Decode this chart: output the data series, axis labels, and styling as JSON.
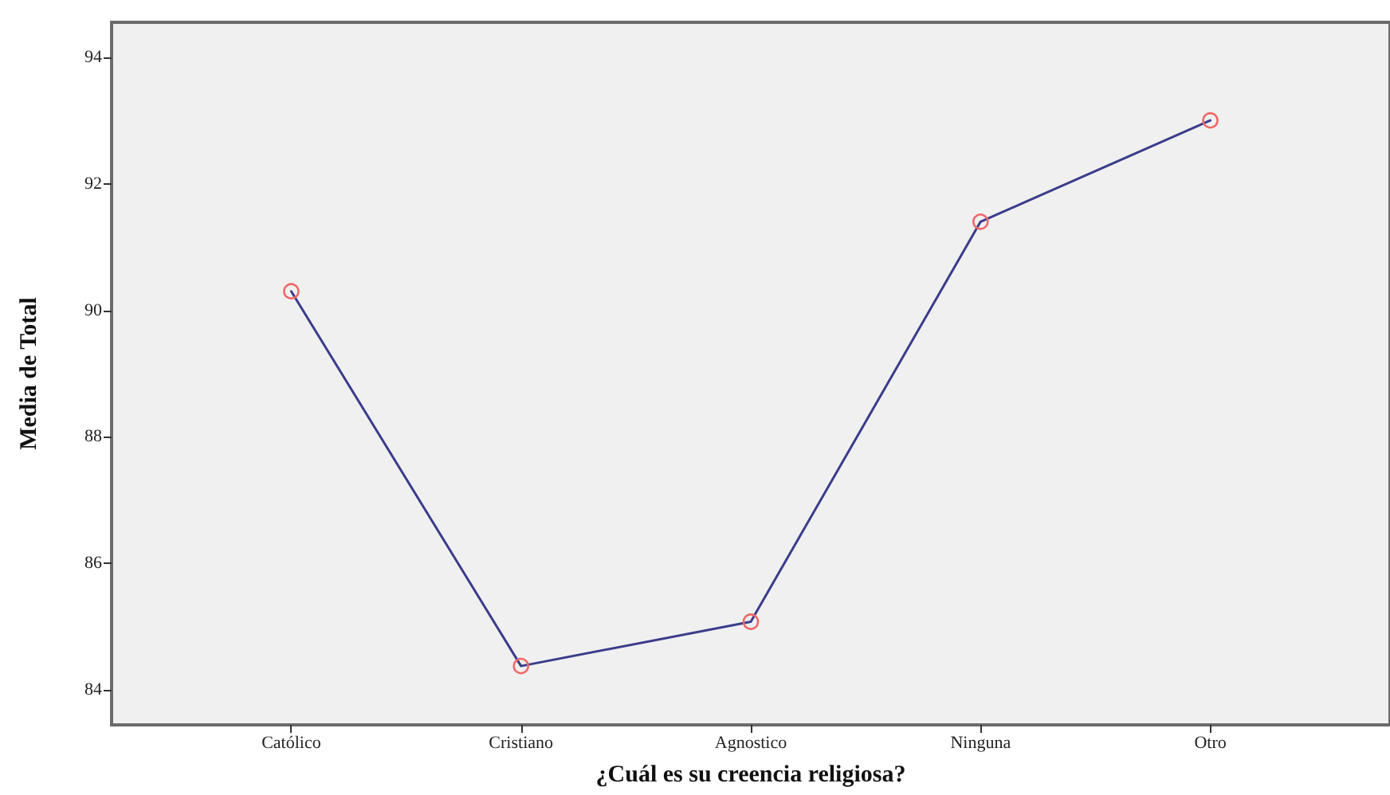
{
  "chart_data": {
    "type": "line",
    "xlabel": "¿Cuál es su creencia religiosa?",
    "ylabel": "Media de Total",
    "categories": [
      "Católico",
      "Cristiano",
      "Agnostico",
      "Ninguna",
      "Otro"
    ],
    "values": [
      90.3,
      84.38,
      85.08,
      91.4,
      93.0
    ],
    "color": "#3c3c8c",
    "colors": [
      "#f06868",
      "#f06868",
      "#f06868",
      "#f06868",
      "#f06868"
    ],
    "marker": "circle",
    "ylim": [
      83.45,
      94.55
    ],
    "yticks": [
      84,
      86,
      88,
      90,
      92,
      94
    ]
  }
}
